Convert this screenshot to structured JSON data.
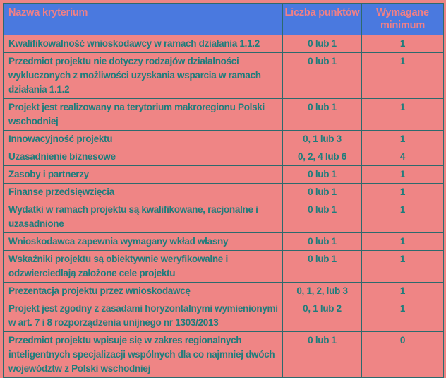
{
  "table": {
    "columns": [
      {
        "label": "Nazwa kryterium"
      },
      {
        "label": "Liczba punktów"
      },
      {
        "label": "Wymagane minimum"
      }
    ],
    "rows": [
      {
        "name": "Kwalifikowalność wnioskodawcy w ramach działania 1.1.2",
        "points": "0 lub 1",
        "minimum": "1"
      },
      {
        "name": "Przedmiot projektu nie dotyczy rodzajów działalności wykluczonych z możliwości uzyskania wsparcia w ramach działania 1.1.2",
        "points": "0 lub 1",
        "minimum": "1"
      },
      {
        "name": "Projekt jest realizowany na terytorium makroregionu Polski wschodniej",
        "points": "0 lub 1",
        "minimum": "1"
      },
      {
        "name": "Innowacyjność projektu",
        "points": "0, 1 lub 3",
        "minimum": "1"
      },
      {
        "name": "Uzasadnienie biznesowe",
        "points": "0, 2, 4 lub 6",
        "minimum": "4"
      },
      {
        "name": "Zasoby i partnerzy",
        "points": "0 lub 1",
        "minimum": "1"
      },
      {
        "name": "Finanse przedsięwzięcia",
        "points": "0 lub 1",
        "minimum": "1"
      },
      {
        "name": "Wydatki w ramach projektu są kwalifikowane, racjonalne i uzasadnione",
        "points": "0 lub 1",
        "minimum": "1"
      },
      {
        "name": "Wnioskodawca zapewnia wymagany wkład własny",
        "points": "0 lub 1",
        "minimum": "1"
      },
      {
        "name": "Wskaźniki projektu są obiektywnie weryfikowalne i odzwierciedlają założone cele projektu",
        "points": "0 lub 1",
        "minimum": "1"
      },
      {
        "name": "Prezentacja projektu przez wnioskodawcę",
        "points": "0, 1, 2, lub 3",
        "minimum": "1"
      },
      {
        "name": "Projekt jest zgodny z zasadami horyzontalnymi wymienionymi w art. 7 i 8 rozporządzenia unijnego nr 1303/2013",
        "points": "0, 1 lub 2",
        "minimum": "1"
      },
      {
        "name": "Przedmiot projektu wpisuje się w zakres regionalnych inteligentnych specjalizacji wspólnych dla co najmniej dwóch województw z Polski wschodniej",
        "points": "0 lub 1",
        "minimum": "0"
      }
    ]
  },
  "colors": {
    "page_bg": "#ee8585",
    "header_bg": "#4a79df",
    "header_text": "#f08086",
    "body_bg": "#ef8585",
    "body_text": "#1e7d7c",
    "border": "#2d6a6d",
    "outer_border": "#b8605e"
  }
}
